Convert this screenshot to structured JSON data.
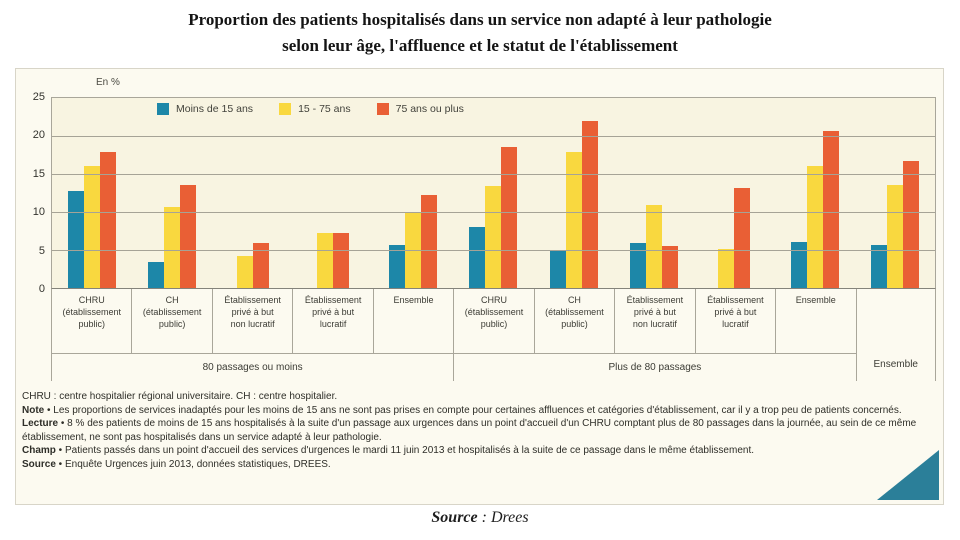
{
  "title": {
    "line1": "Proportion des patients hospitalisés dans un service non adapté à leur pathologie",
    "line2": "selon leur âge, l'affluence et le statut de l'établissement"
  },
  "chart_data": {
    "type": "bar",
    "unit_label": "En %",
    "ylim": [
      0,
      25
    ],
    "yticks": [
      25,
      20,
      15,
      10,
      5,
      0
    ],
    "grid_values": [
      20,
      15,
      10,
      5
    ],
    "legend_position": "top-left-inside",
    "legend": [
      {
        "label": "Moins de 15 ans",
        "color": "#1d87a8"
      },
      {
        "label": "15 - 75 ans",
        "color": "#f9d83f"
      },
      {
        "label": "75 ans ou plus",
        "color": "#e95f35"
      }
    ],
    "groups": [
      {
        "label": "CHRU\n(établissement\npublic)",
        "values": [
          12.8,
          16.1,
          17.9
        ]
      },
      {
        "label": "CH\n(établissement\npublic)",
        "values": [
          3.4,
          10.6,
          13.5
        ]
      },
      {
        "label": "Établissement\nprivé à but\nnon lucratif",
        "values": [
          null,
          4.2,
          5.9
        ]
      },
      {
        "label": "Établissement\nprivé à but\nlucratif",
        "values": [
          null,
          7.2,
          7.3
        ]
      },
      {
        "label": "Ensemble",
        "values": [
          5.6,
          10.0,
          12.3
        ]
      },
      {
        "label": "CHRU\n(établissement\npublic)",
        "values": [
          8.0,
          13.4,
          18.5
        ]
      },
      {
        "label": "CH\n(établissement\npublic)",
        "values": [
          5.0,
          17.9,
          22.0
        ]
      },
      {
        "label": "Établissement\nprivé à but\nnon lucratif",
        "values": [
          5.9,
          10.9,
          5.5
        ]
      },
      {
        "label": "Établissement\nprivé à but\nlucratif",
        "values": [
          null,
          5.1,
          13.2
        ]
      },
      {
        "label": "Ensemble",
        "values": [
          6.0,
          16.1,
          20.7
        ]
      },
      {
        "label": "Ensemble",
        "values": [
          5.7,
          13.5,
          16.7
        ]
      }
    ],
    "sections": [
      {
        "label": "80 passages ou moins",
        "start": 0,
        "span": 5
      },
      {
        "label": "Plus de 80 passages",
        "start": 5,
        "span": 5
      }
    ]
  },
  "notes": [
    {
      "prefix": "",
      "body": "CHRU : centre hospitalier régional universitaire. CH : centre hospitalier."
    },
    {
      "prefix": "Note",
      "body": " • Les proportions de services inadaptés pour les moins de 15 ans ne sont pas prises en compte pour certaines affluences et catégories d'établissement, car il y a trop peu de patients concernés."
    },
    {
      "prefix": "Lecture",
      "body": " • 8 % des patients de moins de 15 ans hospitalisés à la suite d'un passage aux urgences dans un point d'accueil d'un CHRU comptant plus de 80 passages dans la journée, au sein de ce même établissement, ne sont pas hospitalisés dans un service adapté à leur pathologie."
    },
    {
      "prefix": "Champ",
      "body": " • Patients passés dans un point d'accueil des services d'urgences le mardi 11 juin 2013 et hospitalisés à la suite de ce passage dans le même établissement."
    },
    {
      "prefix": "Source",
      "body": " • Enquête Urgences juin 2013, données statistiques, DREES."
    }
  ],
  "caption": {
    "prefix": "Source",
    "rest": " : Drees"
  }
}
